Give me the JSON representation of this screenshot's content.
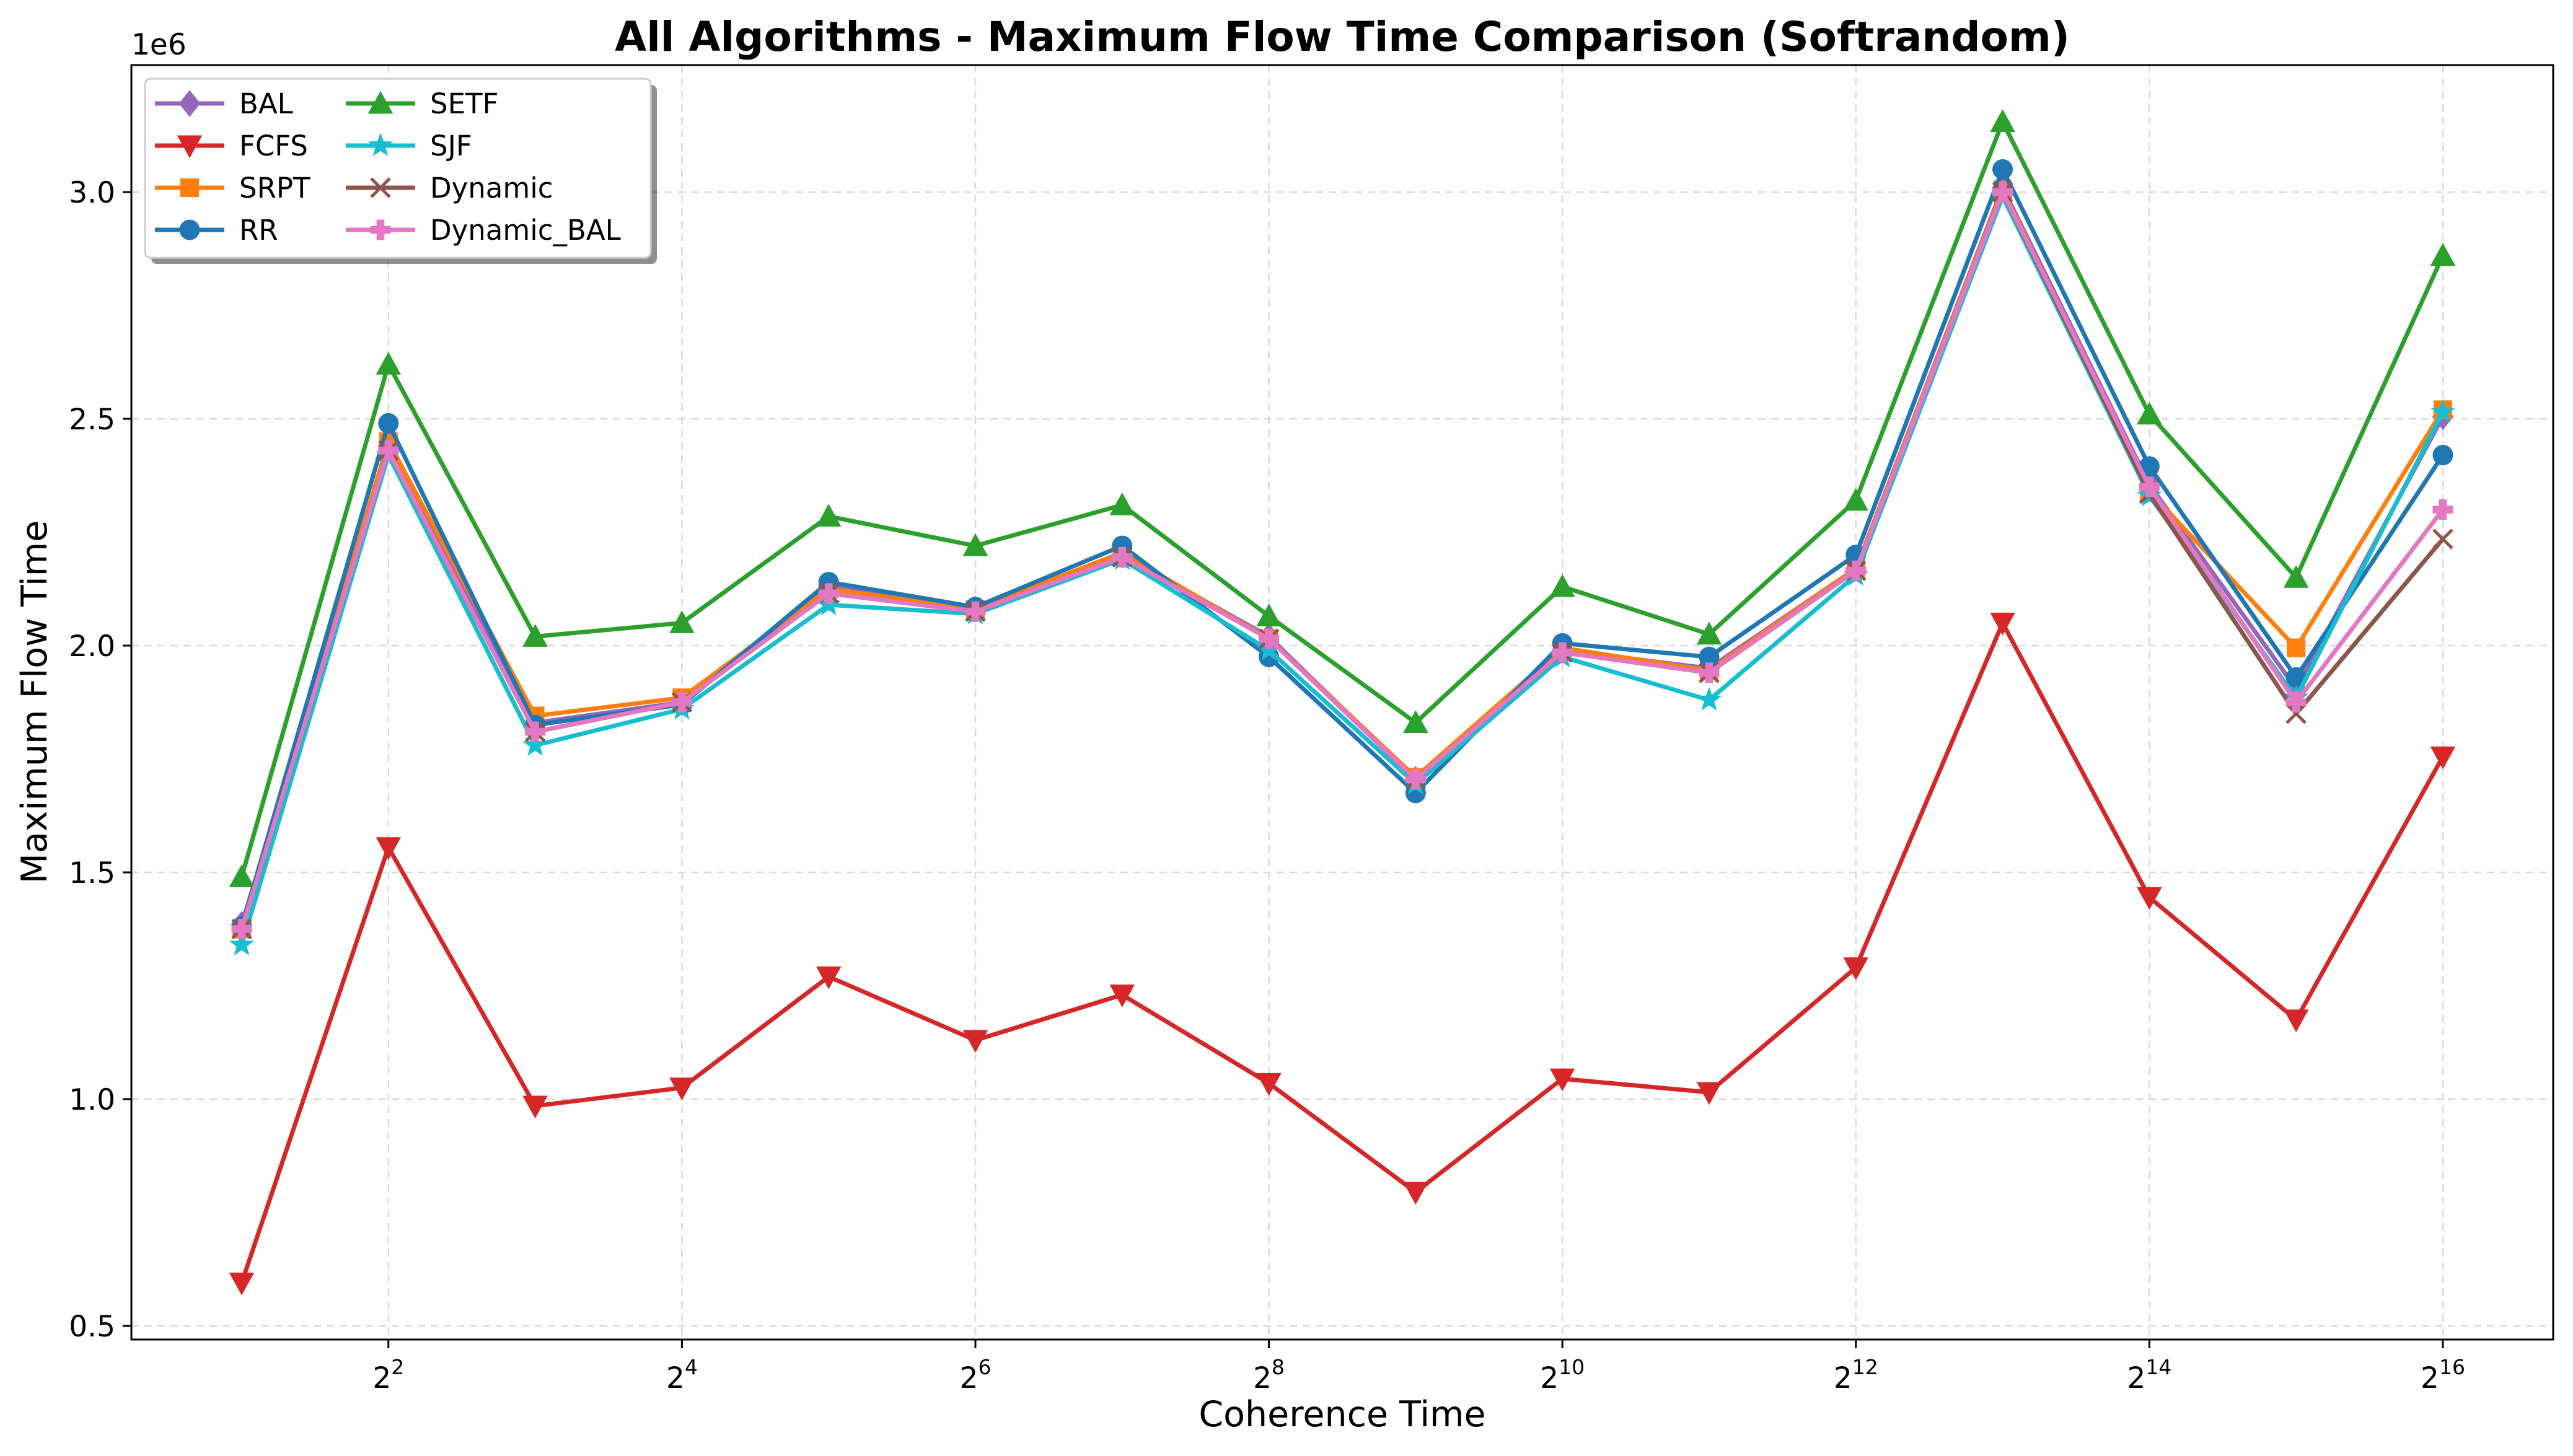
{
  "chart_data": {
    "type": "line",
    "title": "All Algorithms - Maximum Flow Time Comparison (Softrandom)",
    "xlabel": "Coherence Time",
    "ylabel": "Maximum Flow Time",
    "y_offset_label": "1e6",
    "x_scale": "log2",
    "x": [
      2,
      4,
      8,
      16,
      32,
      64,
      128,
      256,
      512,
      1024,
      2048,
      4096,
      8192,
      16384,
      32768,
      65536
    ],
    "x_tick_labels": [
      {
        "base": "2",
        "exp": "2",
        "value": 4
      },
      {
        "base": "2",
        "exp": "4",
        "value": 16
      },
      {
        "base": "2",
        "exp": "6",
        "value": 64
      },
      {
        "base": "2",
        "exp": "8",
        "value": 256
      },
      {
        "base": "2",
        "exp": "10",
        "value": 1024
      },
      {
        "base": "2",
        "exp": "12",
        "value": 4096
      },
      {
        "base": "2",
        "exp": "14",
        "value": 16384
      },
      {
        "base": "2",
        "exp": "16",
        "value": 65536
      }
    ],
    "y_ticks": [
      0.5,
      1.0,
      1.5,
      2.0,
      2.5,
      3.0
    ],
    "y_tick_labels": [
      "0.5",
      "1.0",
      "1.5",
      "2.0",
      "2.5",
      "3.0"
    ],
    "ylim": [
      0.47,
      3.28
    ],
    "grid": true,
    "legend_position": "top-left",
    "series": [
      {
        "name": "BAL",
        "color": "#9467bd",
        "marker": "diamond",
        "values": [
          1.385,
          2.44,
          1.83,
          1.875,
          2.13,
          2.08,
          2.2,
          2.02,
          1.705,
          1.99,
          1.95,
          2.17,
          3.01,
          2.355,
          1.905,
          2.505
        ]
      },
      {
        "name": "FCFS",
        "color": "#d62728",
        "marker": "triangle-down",
        "values": [
          0.595,
          1.555,
          0.985,
          1.025,
          1.27,
          1.13,
          1.23,
          1.035,
          0.795,
          1.045,
          1.015,
          1.29,
          2.05,
          1.445,
          1.175,
          1.755
        ]
      },
      {
        "name": "SRPT",
        "color": "#ff7f0e",
        "marker": "square",
        "values": [
          1.375,
          2.45,
          1.845,
          1.885,
          2.125,
          2.08,
          2.205,
          2.015,
          1.71,
          1.995,
          1.945,
          2.17,
          3.005,
          2.34,
          1.995,
          2.52
        ]
      },
      {
        "name": "RR",
        "color": "#1f77b4",
        "marker": "circle",
        "values": [
          1.38,
          2.49,
          1.825,
          1.87,
          2.14,
          2.085,
          2.22,
          1.975,
          1.675,
          2.005,
          1.975,
          2.2,
          3.05,
          2.395,
          1.93,
          2.42
        ]
      },
      {
        "name": "SETF",
        "color": "#2ca02c",
        "marker": "triangle-up",
        "values": [
          1.49,
          2.62,
          2.02,
          2.05,
          2.285,
          2.22,
          2.31,
          2.065,
          1.83,
          2.13,
          2.025,
          2.32,
          3.155,
          2.51,
          2.15,
          2.86
        ]
      },
      {
        "name": "SJF",
        "color": "#17becf",
        "marker": "star",
        "values": [
          1.34,
          2.42,
          1.78,
          1.86,
          2.09,
          2.07,
          2.19,
          1.99,
          1.695,
          1.975,
          1.88,
          2.155,
          2.99,
          2.33,
          1.885,
          2.515
        ]
      },
      {
        "name": "Dynamic",
        "color": "#8c564b",
        "marker": "x",
        "values": [
          1.375,
          2.43,
          1.81,
          1.875,
          2.115,
          2.075,
          2.195,
          2.015,
          1.705,
          1.985,
          1.94,
          2.165,
          3.0,
          2.335,
          1.85,
          2.235
        ]
      },
      {
        "name": "Dynamic_BAL",
        "color": "#e377c2",
        "marker": "plus-filled",
        "values": [
          1.375,
          2.43,
          1.81,
          1.875,
          2.115,
          2.075,
          2.195,
          2.015,
          1.705,
          1.985,
          1.94,
          2.165,
          3.0,
          2.35,
          1.875,
          2.3
        ]
      }
    ]
  }
}
